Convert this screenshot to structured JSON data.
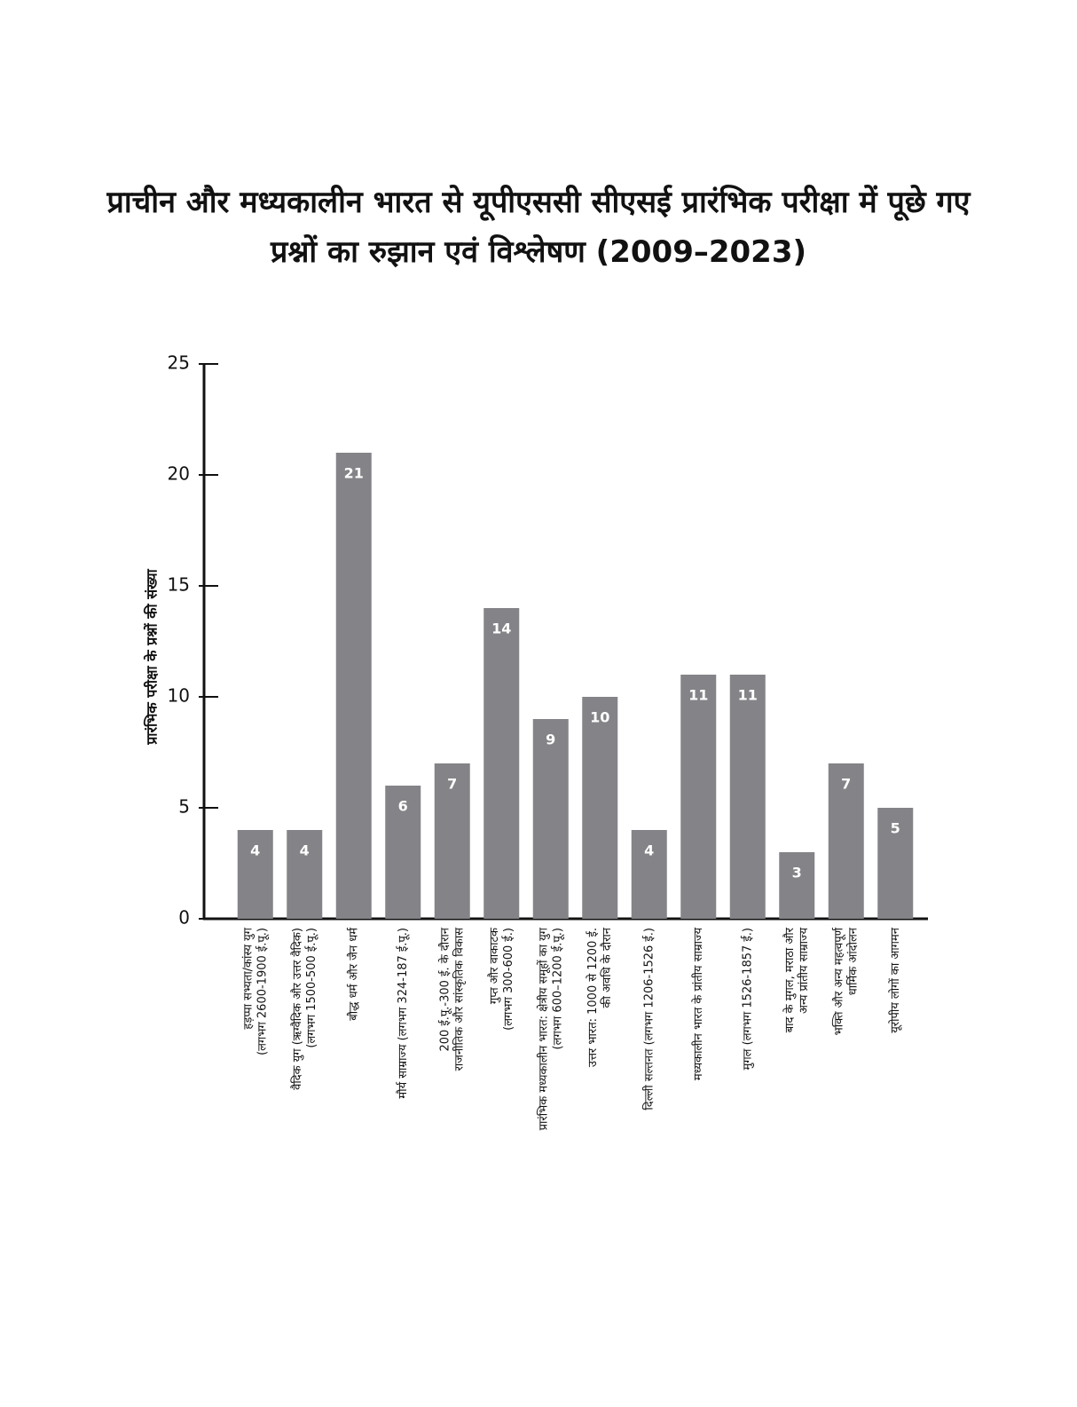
{
  "chart_data": {
    "type": "bar",
    "title": "प्राचीन और मध्यकालीन भारत से यूपीएससी सीएसई प्रारंभिक परीक्षा में पूछे गए प्रश्नों का रुझान एवं विश्लेषण (2009–2023)",
    "y_label": "प्रारंभिक परीक्षा के प्रश्नों की संख्या",
    "categories": [
      [
        "हड़प्पा सभ्यता/कांस्य युग",
        "(लगभग 2600-1900 ई.पू.)"
      ],
      [
        "वैदिक युग (ऋग्वैदिक और उत्तर वैदिक)",
        "(लगभग 1500-500 ई.पू.)"
      ],
      [
        "बौद्ध धर्म और जैन धर्म"
      ],
      [
        "मौर्य साम्राज्य (लगभग 324-187 ई.पू.)"
      ],
      [
        "200 ई.पू.-300 ई. के दौरान",
        "राजनीतिक और सांस्कृतिक विकास"
      ],
      [
        "गुप्त और वाकाटक",
        "(लगभग 300-600 ई.)"
      ],
      [
        "प्रारंभिक मध्यकालीन भारत: क्षेत्रीय समूहों का युग",
        "(लगभग 600–1200 ई.पू.)"
      ],
      [
        "उत्तर भारत: 1000 से 1200 ई.",
        "की अवधि के दौरान"
      ],
      [
        "दिल्ली सल्तनत (लगभग 1206-1526 ई.)"
      ],
      [
        "मध्यकालीन भारत के प्रांतीय साम्राज्य"
      ],
      [
        "मुगल (लगभग 1526-1857 ई.)"
      ],
      [
        "बाद के मुगल, मराठा और",
        "अन्य प्रांतीय साम्राज्य"
      ],
      [
        "भक्ति और अन्य महत्वपूर्ण",
        "धार्मिक आंदोलन"
      ],
      [
        "यूरोपीय लोगों का आगमन"
      ]
    ],
    "values": [
      4,
      4,
      21,
      6,
      7,
      14,
      9,
      10,
      4,
      11,
      11,
      3,
      7,
      5
    ],
    "color": "#848387",
    "ylim": [
      0,
      25
    ],
    "yticks": [
      0,
      5,
      10,
      15,
      20,
      25
    ],
    "grid": false
  }
}
